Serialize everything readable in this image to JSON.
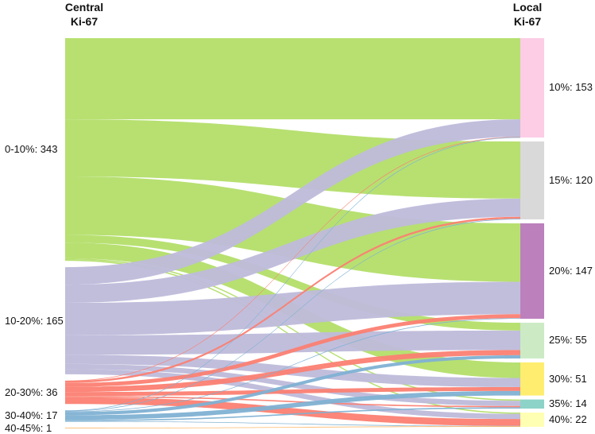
{
  "headers": {
    "left": [
      "Central",
      "Ki-67"
    ],
    "right": [
      "Local",
      "Ki-67"
    ]
  },
  "sources": [
    {
      "label": "0-10%: 343",
      "color": "#b3de69"
    },
    {
      "label": "10-20%: 165",
      "color": "#bebada"
    },
    {
      "label": "20-30%: 36",
      "color": "#fb8072"
    },
    {
      "label": "30-40%: 17",
      "color": "#80b1d3"
    },
    {
      "label": "40-45%: 1",
      "color": "#fdb462"
    }
  ],
  "targets": [
    {
      "label": "10%: 153",
      "color": "#fccde5"
    },
    {
      "label": "15%: 120",
      "color": "#d9d9d9"
    },
    {
      "label": "20%: 147",
      "color": "#bc80bd"
    },
    {
      "label": "25%: 55",
      "color": "#ccebc5"
    },
    {
      "label": "30%: 51",
      "color": "#ffed6f"
    },
    {
      "label": "35%: 14",
      "color": "#8dd3c7"
    },
    {
      "label": "40%: 22",
      "color": "#ffffb3"
    }
  ],
  "flows": [
    {
      "source": 0,
      "target": 0,
      "value": 125
    },
    {
      "source": 0,
      "target": 1,
      "value": 88
    },
    {
      "source": 0,
      "target": 2,
      "value": 90
    },
    {
      "source": 0,
      "target": 3,
      "value": 12
    },
    {
      "source": 0,
      "target": 4,
      "value": 24
    },
    {
      "source": 0,
      "target": 5,
      "value": 2
    },
    {
      "source": 0,
      "target": 6,
      "value": 2
    },
    {
      "source": 1,
      "target": 0,
      "value": 27
    },
    {
      "source": 1,
      "target": 1,
      "value": 28
    },
    {
      "source": 1,
      "target": 2,
      "value": 50
    },
    {
      "source": 1,
      "target": 3,
      "value": 30
    },
    {
      "source": 1,
      "target": 4,
      "value": 14
    },
    {
      "source": 1,
      "target": 5,
      "value": 8
    },
    {
      "source": 1,
      "target": 6,
      "value": 8
    },
    {
      "source": 2,
      "target": 0,
      "value": 0.5
    },
    {
      "source": 2,
      "target": 1,
      "value": 3
    },
    {
      "source": 2,
      "target": 2,
      "value": 6
    },
    {
      "source": 2,
      "target": 3,
      "value": 8
    },
    {
      "source": 2,
      "target": 4,
      "value": 6
    },
    {
      "source": 2,
      "target": 5,
      "value": 2
    },
    {
      "source": 2,
      "target": 6,
      "value": 10.5
    },
    {
      "source": 3,
      "target": 0,
      "value": 0.5
    },
    {
      "source": 3,
      "target": 1,
      "value": 1
    },
    {
      "source": 3,
      "target": 2,
      "value": 1
    },
    {
      "source": 3,
      "target": 3,
      "value": 5
    },
    {
      "source": 3,
      "target": 4,
      "value": 7
    },
    {
      "source": 3,
      "target": 5,
      "value": 2
    },
    {
      "source": 3,
      "target": 6,
      "value": 0.5
    },
    {
      "source": 4,
      "target": 6,
      "value": 1
    }
  ]
}
